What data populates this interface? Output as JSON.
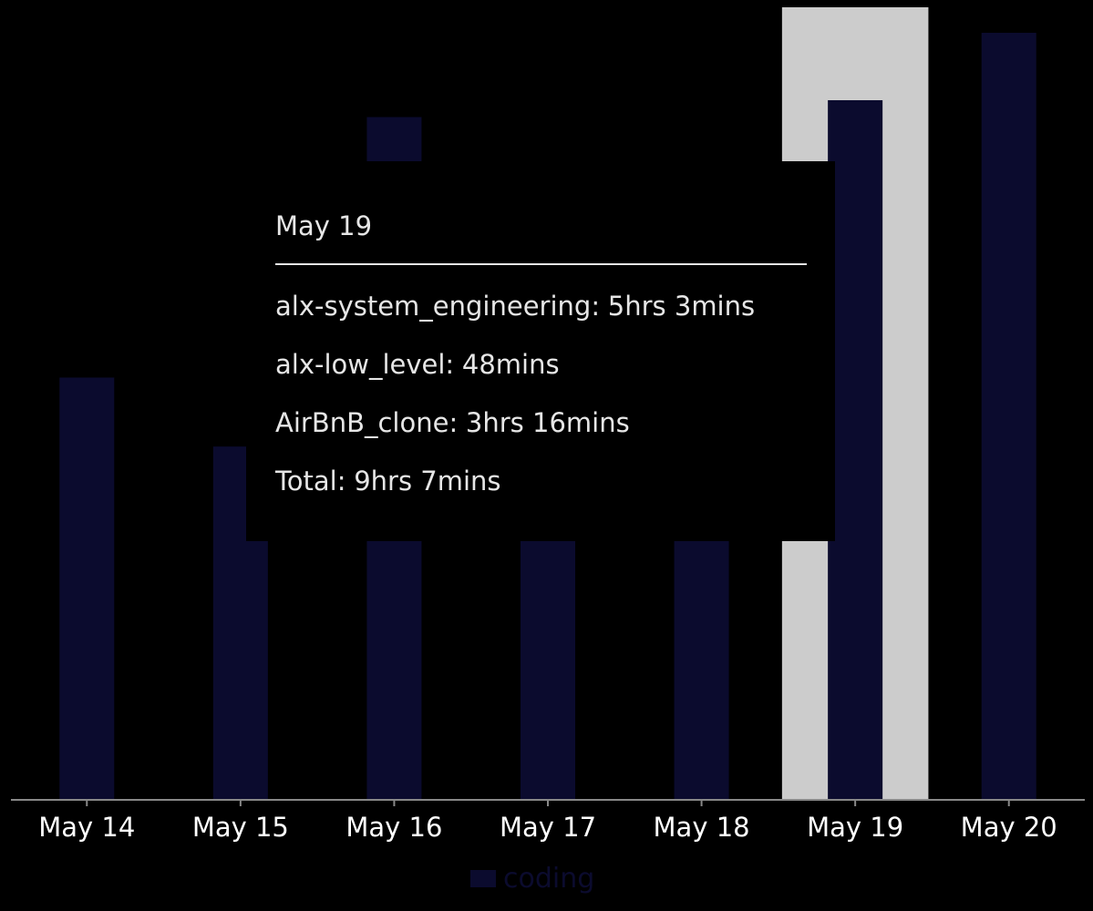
{
  "chart_data": {
    "type": "bar",
    "categories": [
      "May 14",
      "May 15",
      "May 16",
      "May 17",
      "May 18",
      "May 19",
      "May 20"
    ],
    "series": [
      {
        "name": "coding",
        "values": [
          5.5,
          4.6,
          8.9,
          3.4,
          3.8,
          9.12,
          10.0
        ]
      }
    ],
    "ylim": [
      0,
      10
    ],
    "highlighted_category": "May 19",
    "legend_position": "bottom",
    "grid": false
  },
  "tooltip": {
    "title": "May 19",
    "rows": [
      {
        "label": "alx-system_engineering:",
        "value": "5hrs 3mins"
      },
      {
        "label": "alx-low_level:",
        "value": "48mins"
      },
      {
        "label": "AirBnB_clone:",
        "value": "3hrs 16mins"
      },
      {
        "label": "Total:",
        "value": "9hrs 7mins"
      }
    ]
  },
  "colors": {
    "background": "#000000",
    "bar": "#0b0b2e",
    "highlight": "#cccccc",
    "axis": "#888888",
    "tick_text": "#ffffff",
    "tooltip_text": "#e6e6e6"
  }
}
